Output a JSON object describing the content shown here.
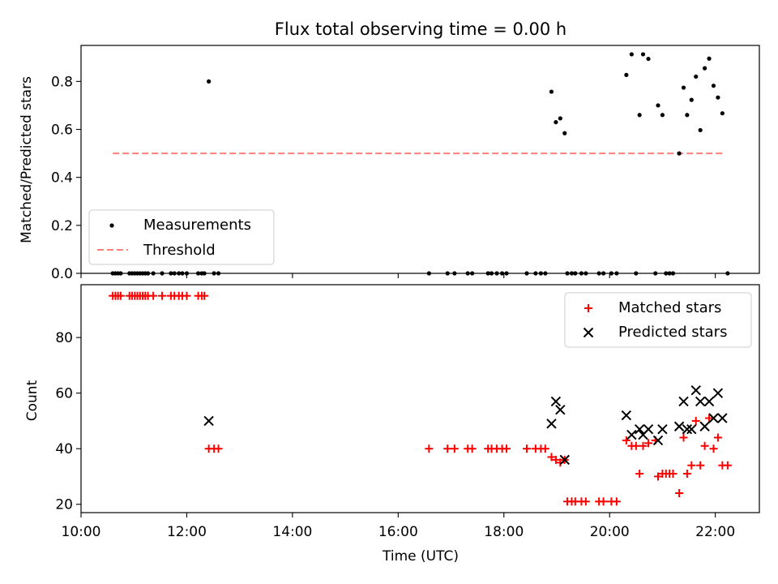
{
  "chart_data": [
    {
      "type": "scatter",
      "title": "Flux total observing time = 0.00 h",
      "ylabel": "Matched/Predicted stars",
      "xlabel": "",
      "ylim": [
        0,
        0.95
      ],
      "yticks": [
        0.0,
        0.2,
        0.4,
        0.6,
        0.8
      ],
      "ytick_labels": [
        "0.0",
        "0.2",
        "0.4",
        "0.6",
        "0.8"
      ],
      "grid": false,
      "legend_position": "lower-left",
      "series": [
        {
          "name": "Measurements",
          "kind": "scatter",
          "color": "#000000",
          "points": [
            [
              "10:36",
              0
            ],
            [
              "10:39",
              0
            ],
            [
              "10:42",
              0
            ],
            [
              "10:45",
              0
            ],
            [
              "10:55",
              0
            ],
            [
              "10:58",
              0
            ],
            [
              "11:01",
              0
            ],
            [
              "11:04",
              0
            ],
            [
              "11:07",
              0
            ],
            [
              "11:10",
              0
            ],
            [
              "11:13",
              0
            ],
            [
              "11:16",
              0
            ],
            [
              "11:22",
              0
            ],
            [
              "11:32",
              0
            ],
            [
              "11:42",
              0
            ],
            [
              "11:46",
              0
            ],
            [
              "11:51",
              0
            ],
            [
              "11:55",
              0
            ],
            [
              "12:00",
              0
            ],
            [
              "12:13",
              0
            ],
            [
              "12:17",
              0
            ],
            [
              "12:20",
              0
            ],
            [
              "12:25",
              0.8
            ],
            [
              "12:31",
              0
            ],
            [
              "12:36",
              0
            ],
            [
              "16:35",
              0
            ],
            [
              "16:56",
              0
            ],
            [
              "17:04",
              0
            ],
            [
              "17:19",
              0
            ],
            [
              "17:24",
              0
            ],
            [
              "17:42",
              0
            ],
            [
              "17:46",
              0
            ],
            [
              "17:52",
              0
            ],
            [
              "17:58",
              0
            ],
            [
              "18:03",
              0
            ],
            [
              "18:26",
              0
            ],
            [
              "18:36",
              0
            ],
            [
              "18:42",
              0
            ],
            [
              "18:47",
              0
            ],
            [
              "18:54",
              0.757
            ],
            [
              "18:59",
              0.63
            ],
            [
              "19:04",
              0.646
            ],
            [
              "19:09",
              0.584
            ],
            [
              "19:12",
              0
            ],
            [
              "19:17",
              0
            ],
            [
              "19:21",
              0
            ],
            [
              "19:28",
              0
            ],
            [
              "19:33",
              0
            ],
            [
              "19:48",
              0
            ],
            [
              "19:53",
              0
            ],
            [
              "20:02",
              0
            ],
            [
              "20:08",
              0
            ],
            [
              "20:19",
              0.827
            ],
            [
              "20:25",
              0.913
            ],
            [
              "20:30",
              0
            ],
            [
              "20:34",
              0.66
            ],
            [
              "20:38",
              0.913
            ],
            [
              "20:44",
              0.894
            ],
            [
              "20:52",
              0
            ],
            [
              "20:55",
              0.7
            ],
            [
              "21:00",
              0.66
            ],
            [
              "21:04",
              0
            ],
            [
              "21:08",
              0
            ],
            [
              "21:12",
              0
            ],
            [
              "21:19",
              0.5
            ],
            [
              "21:24",
              0.774
            ],
            [
              "21:28",
              0.66
            ],
            [
              "21:33",
              0.723
            ],
            [
              "21:38",
              0.82
            ],
            [
              "21:43",
              0.597
            ],
            [
              "21:48",
              0.855
            ],
            [
              "21:53",
              0.895
            ],
            [
              "21:58",
              0.782
            ],
            [
              "22:03",
              0.733
            ],
            [
              "22:08",
              0.667
            ],
            [
              "22:14",
              0
            ]
          ]
        },
        {
          "name": "Threshold",
          "kind": "dashed-line",
          "color": "#ff7f7f",
          "points": [
            [
              "10:36",
              0.5
            ],
            [
              "22:09",
              0.5
            ]
          ]
        }
      ]
    },
    {
      "type": "scatter",
      "title": "",
      "xlabel": "Time (UTC)",
      "ylabel": "Count",
      "xlim": [
        "10:00",
        "22:50"
      ],
      "ylim": [
        17,
        99
      ],
      "xticks": [
        "10:00",
        "12:00",
        "14:00",
        "16:00",
        "18:00",
        "20:00",
        "22:00"
      ],
      "yticks": [
        20,
        40,
        60,
        80
      ],
      "ytick_labels": [
        "20",
        "40",
        "60",
        "80"
      ],
      "grid": false,
      "legend_position": "top-right",
      "series": [
        {
          "name": "Matched stars",
          "kind": "plus",
          "color": "#ff0000",
          "points": [
            [
              "10:36",
              95
            ],
            [
              "10:39",
              95
            ],
            [
              "10:42",
              95
            ],
            [
              "10:45",
              95
            ],
            [
              "10:55",
              95
            ],
            [
              "10:58",
              95
            ],
            [
              "11:01",
              95
            ],
            [
              "11:04",
              95
            ],
            [
              "11:07",
              95
            ],
            [
              "11:10",
              95
            ],
            [
              "11:13",
              95
            ],
            [
              "11:16",
              95
            ],
            [
              "11:22",
              95
            ],
            [
              "11:32",
              95
            ],
            [
              "11:42",
              95
            ],
            [
              "11:46",
              95
            ],
            [
              "11:51",
              95
            ],
            [
              "11:55",
              95
            ],
            [
              "12:00",
              95
            ],
            [
              "12:13",
              95
            ],
            [
              "12:17",
              95
            ],
            [
              "12:20",
              95
            ],
            [
              "12:25",
              40
            ],
            [
              "12:31",
              40
            ],
            [
              "12:36",
              40
            ],
            [
              "16:35",
              40
            ],
            [
              "16:56",
              40
            ],
            [
              "17:04",
              40
            ],
            [
              "17:19",
              40
            ],
            [
              "17:24",
              40
            ],
            [
              "17:42",
              40
            ],
            [
              "17:46",
              40
            ],
            [
              "17:52",
              40
            ],
            [
              "17:58",
              40
            ],
            [
              "18:03",
              40
            ],
            [
              "18:26",
              40
            ],
            [
              "18:36",
              40
            ],
            [
              "18:42",
              40
            ],
            [
              "18:47",
              40
            ],
            [
              "18:54",
              37
            ],
            [
              "18:59",
              36
            ],
            [
              "19:04",
              35
            ],
            [
              "19:09",
              36
            ],
            [
              "19:12",
              21
            ],
            [
              "19:17",
              21
            ],
            [
              "19:21",
              21
            ],
            [
              "19:28",
              21
            ],
            [
              "19:33",
              21
            ],
            [
              "19:48",
              21
            ],
            [
              "19:53",
              21
            ],
            [
              "20:02",
              21
            ],
            [
              "20:08",
              21
            ],
            [
              "20:19",
              43
            ],
            [
              "20:25",
              41
            ],
            [
              "20:30",
              41
            ],
            [
              "20:34",
              31
            ],
            [
              "20:38",
              41
            ],
            [
              "20:44",
              42
            ],
            [
              "20:52",
              43
            ],
            [
              "20:55",
              30
            ],
            [
              "21:00",
              31
            ],
            [
              "21:04",
              31
            ],
            [
              "21:08",
              31
            ],
            [
              "21:12",
              31
            ],
            [
              "21:19",
              24
            ],
            [
              "21:24",
              44
            ],
            [
              "21:28",
              31
            ],
            [
              "21:33",
              34
            ],
            [
              "21:38",
              50
            ],
            [
              "21:43",
              34
            ],
            [
              "21:48",
              41
            ],
            [
              "21:53",
              51
            ],
            [
              "21:58",
              40
            ],
            [
              "22:03",
              44
            ],
            [
              "22:08",
              34
            ],
            [
              "22:14",
              34
            ]
          ]
        },
        {
          "name": "Predicted stars",
          "kind": "x",
          "color": "#000000",
          "points": [
            [
              "12:25",
              50
            ],
            [
              "18:54",
              49
            ],
            [
              "18:59",
              57
            ],
            [
              "19:04",
              54
            ],
            [
              "19:09",
              36
            ],
            [
              "20:19",
              52
            ],
            [
              "20:25",
              45
            ],
            [
              "20:34",
              47
            ],
            [
              "20:38",
              45
            ],
            [
              "20:44",
              47
            ],
            [
              "20:55",
              43
            ],
            [
              "21:00",
              47
            ],
            [
              "21:19",
              48
            ],
            [
              "21:24",
              57
            ],
            [
              "21:28",
              47
            ],
            [
              "21:33",
              47
            ],
            [
              "21:38",
              61
            ],
            [
              "21:43",
              57
            ],
            [
              "21:48",
              48
            ],
            [
              "21:53",
              57
            ],
            [
              "21:58",
              51
            ],
            [
              "22:03",
              60
            ],
            [
              "22:08",
              51
            ]
          ]
        }
      ]
    }
  ]
}
